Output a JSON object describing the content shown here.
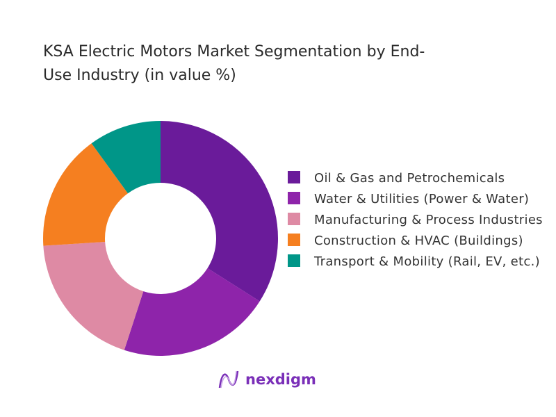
{
  "chart_data": {
    "type": "pie",
    "donut": true,
    "title": "KSA Electric Motors Market Segmentation by End-Use Industry (in value %)",
    "legend_position": "right",
    "categories": [
      "Oil & Gas and Petrochemicals",
      "Water & Utilities (Power & Water)",
      "Manufacturing & Process Industries",
      "Construction & HVAC (Buildings)",
      "Transport & Mobility (Rail, EV, etc.)"
    ],
    "values": [
      34,
      21,
      19,
      16,
      10
    ],
    "colors": [
      "#6a1b9a",
      "#8e24aa",
      "#de8aa4",
      "#f57f20",
      "#009688"
    ]
  },
  "brand": {
    "name": "nexdigm",
    "color": "#7a2fb8"
  }
}
